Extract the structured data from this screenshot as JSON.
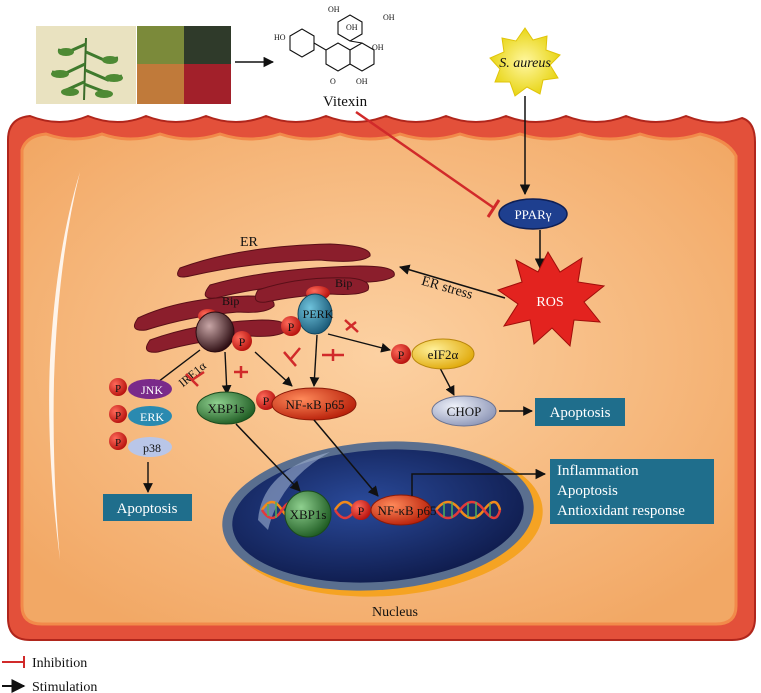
{
  "compound": {
    "name": "Vitexin",
    "structure_labels": [
      "HO",
      "OH",
      "OH",
      "OH",
      "OH",
      "O",
      "O",
      "O",
      "OH",
      "OH",
      "HO",
      "OH"
    ]
  },
  "pathogen": "S. aureus",
  "cell": {
    "er_label": "ER",
    "nucleus_label": "Nucleus",
    "er_stress_label": "ER stress"
  },
  "proteins": {
    "ppar": "PPARγ",
    "ros": "ROS",
    "bip_left": "Bip",
    "bip_right": "Bip",
    "perk": "PERK",
    "ire1": "IRE1α",
    "eif2a": "eIF2α",
    "chop": "CHOP",
    "xbp1s": "XBP1s",
    "nfkb": "NF-κB p65",
    "jnk": "JNK",
    "erk": "ERK",
    "p38": "p38",
    "phospho": "P"
  },
  "outcomes": {
    "apoptosis_right": "Apoptosis",
    "apoptosis_left": "Apoptosis",
    "nuclear_lines": [
      "Inflammation",
      "Apoptosis",
      "Antioxidant response"
    ]
  },
  "legend": {
    "inhibition": "Inhibition",
    "stimulation": "Stimulation"
  },
  "colors": {
    "cell_fill": "#f7b87c",
    "membrane": "#c0392b",
    "er": "#8b1e2c",
    "nucleus": "#1b2f6e",
    "teal_box": "#1f6e8c",
    "inhibit": "#d12a2a",
    "ros": "#e3231f",
    "sun": "#f3e51b",
    "ppar": "#1e3f8f",
    "xbp1s": "#3e8a3e",
    "nfkb": "#d83a1f",
    "eif2a": "#f0c419",
    "chop": "#b8bfd6",
    "jnk": "#7a2a8a",
    "erk": "#2a8ab0",
    "p38": "#b9c6e8"
  }
}
